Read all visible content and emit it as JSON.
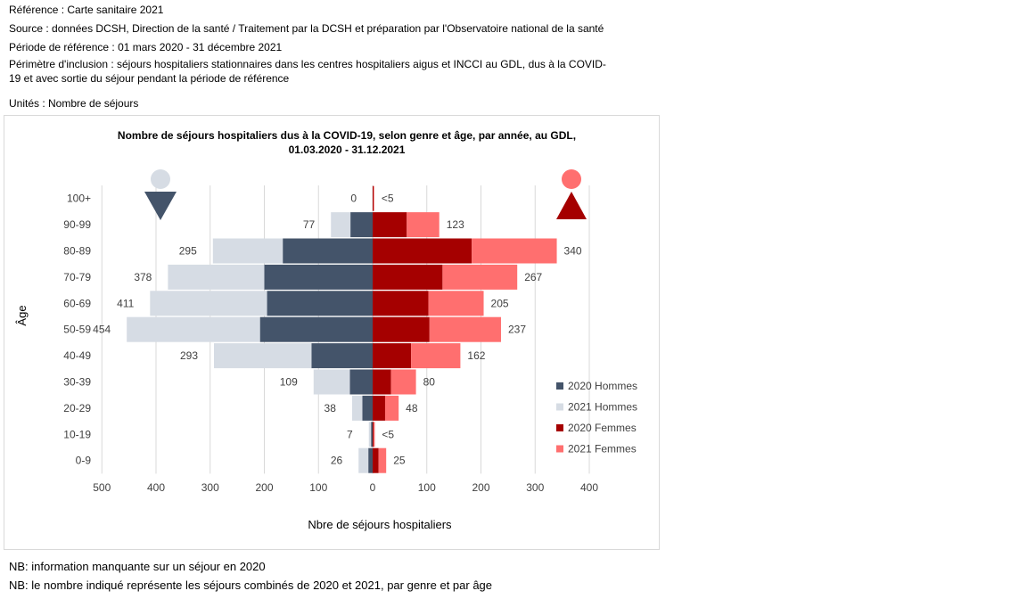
{
  "header": {
    "reference": "Référence : Carte sanitaire 2021",
    "source": "Source : données DCSH, Direction de la santé / Traitement par la DCSH et préparation par l'Observatoire national de la santé",
    "period": "Période de référence : 01 mars 2020 - 31 décembre 2021",
    "perimeter_line1": "Périmètre d'inclusion : séjours hospitaliers stationnaires dans les centres hospitaliers aigus et INCCI au GDL, dus à la COVID-",
    "perimeter_line2": "19 et avec sortie du séjour pendant la période de référence",
    "units": "Unités : Nombre de séjours"
  },
  "notes": {
    "nb1": "NB: information manquante sur un séjour en 2020",
    "nb2": "NB: le nombre indiqué représente les séjours combinés de 2020 et 2021, par genre et par âge"
  },
  "colors": {
    "men_2020": "#44546a",
    "men_2021": "#d6dce4",
    "women_2020": "#a50000",
    "women_2021": "#ff6f6f",
    "male_icon": "#d6dce4",
    "male_icon_triangle": "#44546a",
    "female_icon": "#ff6f6f",
    "female_icon_triangle": "#a50000",
    "grid": "#d9d9d9",
    "text": "#404040"
  },
  "icons": {
    "male": "male-symbol-icon",
    "female": "female-symbol-icon"
  },
  "chart_data": {
    "type": "bar",
    "orientation": "horizontal",
    "layout": "population-pyramid",
    "title_line1": "Nombre de séjours hospitaliers dus à la COVID-19, selon genre et âge, par année, au GDL,",
    "title_line2": "01.03.2020 - 31.12.2021",
    "xlabel": "Nbre de séjours hospitaliers",
    "ylabel": "Âge",
    "xlim": [
      -500,
      400
    ],
    "xticks": [
      -500,
      -400,
      -300,
      -200,
      -100,
      0,
      100,
      200,
      300,
      400
    ],
    "xtick_labels": [
      "500",
      "400",
      "300",
      "200",
      "100",
      "0",
      "100",
      "200",
      "300",
      "400"
    ],
    "grid": true,
    "legend_position": "right",
    "categories": [
      "100+",
      "90-99",
      "80-89",
      "70-79",
      "60-69",
      "50-59",
      "40-49",
      "30-39",
      "20-29",
      "10-19",
      "0-9"
    ],
    "series": [
      {
        "name": "2020 Hommes",
        "side": "left",
        "values": [
          0,
          41,
          166,
          200,
          195,
          208,
          113,
          42,
          19,
          3,
          8
        ]
      },
      {
        "name": "2021 Hommes",
        "side": "left",
        "values": [
          0,
          36,
          129,
          178,
          216,
          246,
          180,
          67,
          19,
          4,
          18
        ]
      },
      {
        "name": "2020 Femmes",
        "side": "right",
        "values": [
          2,
          63,
          183,
          129,
          103,
          105,
          71,
          34,
          23,
          2,
          11
        ]
      },
      {
        "name": "2021 Femmes",
        "side": "right",
        "values": [
          1,
          60,
          157,
          138,
          102,
          132,
          91,
          46,
          25,
          2,
          14
        ]
      }
    ],
    "total_labels_men": [
      "0",
      "77",
      "295",
      "378",
      "411",
      "454",
      "293",
      "109",
      "38",
      "7",
      "26"
    ],
    "total_labels_women": [
      "<5",
      "123",
      "340",
      "267",
      "205",
      "237",
      "162",
      "80",
      "48",
      "<5",
      "25"
    ]
  }
}
